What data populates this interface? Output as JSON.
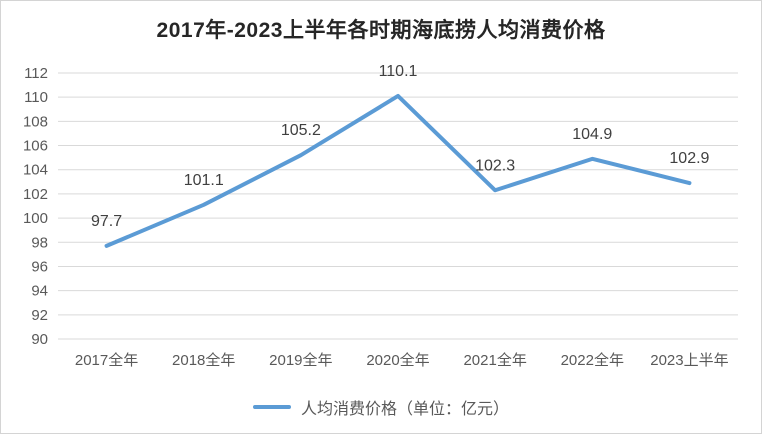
{
  "chart_data": {
    "type": "line",
    "title": "2017年-2023上半年各时期海底捞人均消费价格",
    "categories": [
      "2017全年",
      "2018全年",
      "2019全年",
      "2020全年",
      "2021全年",
      "2022全年",
      "2023上半年"
    ],
    "series": [
      {
        "name": "人均消费价格（单位：亿元）",
        "values": [
          97.7,
          101.1,
          105.2,
          110.1,
          102.3,
          104.9,
          102.9
        ],
        "color": "#5B9BD5"
      }
    ],
    "data_labels": [
      "97.7",
      "101.1",
      "105.2",
      "110.1",
      "102.3",
      "104.9",
      "102.9"
    ],
    "ylim": [
      90,
      112
    ],
    "ytick_step": 2,
    "ytick_labels": [
      "90",
      "92",
      "94",
      "96",
      "98",
      "100",
      "102",
      "104",
      "106",
      "108",
      "110",
      "112"
    ],
    "grid": true,
    "legend_position": "bottom",
    "colors": {
      "line": "#5B9BD5",
      "gridline": "#d9d9d9",
      "title_text": "#262626",
      "axis_text": "#595959",
      "data_label_text": "#404040",
      "frame_border": "#d4d4d4",
      "background": "#ffffff"
    }
  }
}
